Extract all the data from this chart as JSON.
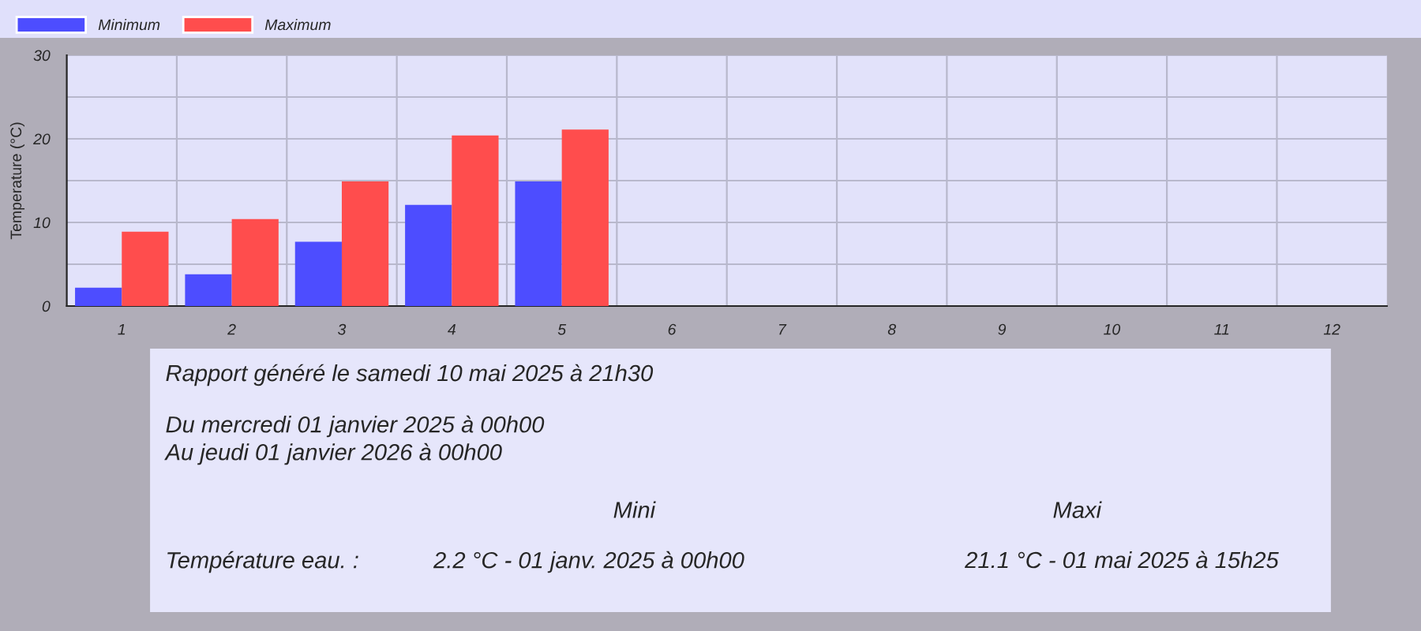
{
  "chart_data": [
    {
      "type": "bar",
      "ylabel": "Temperature (°C)",
      "categories": [
        "1",
        "2",
        "3",
        "4",
        "5",
        "6",
        "7",
        "8",
        "9",
        "10",
        "11",
        "12"
      ],
      "series": [
        {
          "name": "Minimum",
          "color": "#4d4dff",
          "values": [
            2.2,
            3.8,
            7.7,
            12.1,
            14.9,
            null,
            null,
            null,
            null,
            null,
            null,
            null
          ]
        },
        {
          "name": "Maximum",
          "color": "#ff4d4d",
          "values": [
            8.9,
            10.4,
            14.9,
            20.4,
            21.1,
            null,
            null,
            null,
            null,
            null,
            null,
            null
          ]
        }
      ],
      "ylim": [
        0,
        30
      ],
      "yticks": [
        0,
        {
          "value": 5,
          "label": null
        },
        10,
        {
          "value": 15,
          "label": null
        },
        20,
        {
          "value": 25,
          "label": null
        },
        30
      ],
      "grid": true,
      "legend": "top left"
    },
    {
      "type": "other",
      "annotations": [
        "Rapport généré le samedi 10 mai 2025 à 21h30",
        "Du mercredi 01 janvier 2025 à 00h00",
        "Au jeudi 01 janvier 2026 à 00h00",
        "Mini",
        "Maxi",
        "Température eau. :",
        "2.2 °C - 01 janv. 2025 à 00h00",
        "21.1 °C - 01 mai 2025 à 15h25"
      ]
    }
  ]
}
